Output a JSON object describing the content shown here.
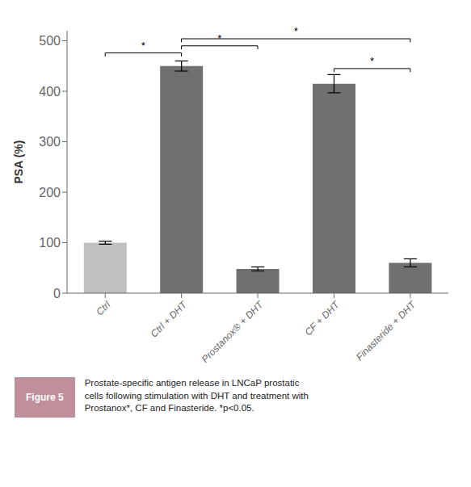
{
  "chart_data": {
    "type": "bar",
    "categories": [
      "Ctrl",
      "Ctrl + DHT",
      "Prostanox® + DHT",
      "CF + DHT",
      "Finasteride + DHT"
    ],
    "values": [
      100,
      450,
      48,
      415,
      60
    ],
    "errors": [
      3,
      10,
      4,
      18,
      8
    ],
    "colors": [
      "#c0c0c0",
      "#707070",
      "#707070",
      "#707070",
      "#707070"
    ],
    "y_label": "PSA (%)",
    "ylim": [
      0,
      520
    ],
    "yticks": [
      0,
      100,
      200,
      300,
      400,
      500
    ],
    "grid": false,
    "annotations": [
      {
        "text": "*",
        "x1": "Ctrl",
        "x2": "Ctrl + DHT",
        "y": 476
      },
      {
        "text": "*",
        "x1": "Ctrl + DHT",
        "x2": "Prostanox® + DHT",
        "y": 490
      },
      {
        "text": "*",
        "x1": "CF + DHT",
        "x2": "Finasteride + DHT",
        "y": 445
      },
      {
        "text": "*",
        "x1": "Ctrl + DHT",
        "x2": "Finasteride + DHT",
        "y": 504
      }
    ],
    "caption": {
      "label": "Figure 5",
      "text": "Prostate-specific antigen release in LNCaP prostatic\ncells following stimulation with DHT and treatment with\nProstanox*, CF and Finasteride.  *p<0.05.",
      "color": "#c0909a"
    }
  }
}
